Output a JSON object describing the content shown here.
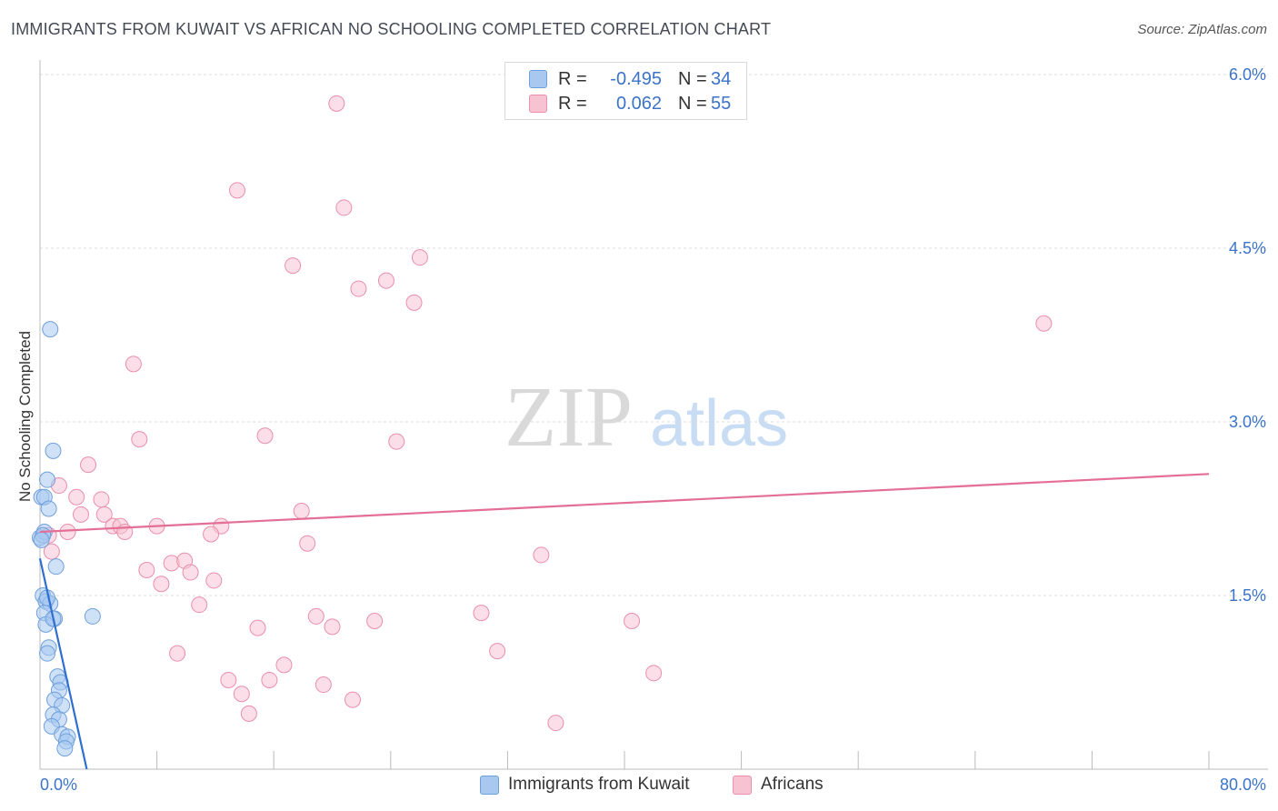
{
  "title": "IMMIGRANTS FROM KUWAIT VS AFRICAN NO SCHOOLING COMPLETED CORRELATION CHART",
  "source": "Source: ZipAtlas.com",
  "watermark": {
    "zip": "ZIP",
    "atlas": "atlas"
  },
  "colors": {
    "blue_fill": "#a8c8f0",
    "blue_stroke": "#6fa0dc",
    "blue_line": "#2e6fcf",
    "pink_fill": "#f7c3d3",
    "pink_stroke": "#ea8fab",
    "pink_line": "#e46f95",
    "accent_text": "#3b73c8",
    "grid": "#dddddd"
  },
  "legend": {
    "rows": [
      {
        "r_label": "R =",
        "r_value": "-0.495",
        "n_label": "N =",
        "n_value": "34"
      },
      {
        "r_label": "R =",
        "r_value": "0.062",
        "n_label": "N =",
        "n_value": "55"
      }
    ]
  },
  "bottom_legend": {
    "series1": "Immigrants from Kuwait",
    "series2": "Africans"
  },
  "chart_data": {
    "type": "scatter",
    "title": "IMMIGRANTS FROM KUWAIT VS AFRICAN NO SCHOOLING COMPLETED CORRELATION CHART",
    "xlabel": "",
    "ylabel": "No Schooling Completed",
    "xlim": [
      0,
      80
    ],
    "ylim": [
      0,
      6.0
    ],
    "x_tick_labels": [
      "0.0%",
      "80.0%"
    ],
    "y_ticks": [
      1.5,
      3.0,
      4.5,
      6.0
    ],
    "y_tick_labels": [
      "1.5%",
      "3.0%",
      "4.5%",
      "6.0%"
    ],
    "grid": true,
    "series": [
      {
        "name": "Immigrants from Kuwait",
        "color": "blue",
        "r": -0.495,
        "n": 34,
        "trend": {
          "x0": 0,
          "y0": 1.82,
          "x1": 3.2,
          "y1": 0.0
        },
        "points": [
          [
            0.7,
            3.8
          ],
          [
            0.9,
            2.75
          ],
          [
            0.5,
            2.5
          ],
          [
            0.1,
            2.35
          ],
          [
            0.3,
            2.35
          ],
          [
            0.6,
            2.25
          ],
          [
            0.0,
            2.0
          ],
          [
            0.3,
            2.05
          ],
          [
            1.1,
            1.75
          ],
          [
            0.2,
            1.5
          ],
          [
            0.4,
            1.45
          ],
          [
            0.7,
            1.43
          ],
          [
            0.3,
            1.35
          ],
          [
            1.0,
            1.3
          ],
          [
            0.4,
            1.25
          ],
          [
            0.9,
            1.3
          ],
          [
            3.6,
            1.32
          ],
          [
            0.6,
            1.05
          ],
          [
            0.5,
            1.0
          ],
          [
            1.2,
            0.8
          ],
          [
            1.4,
            0.75
          ],
          [
            1.3,
            0.68
          ],
          [
            1.0,
            0.6
          ],
          [
            1.5,
            0.55
          ],
          [
            0.9,
            0.47
          ],
          [
            1.3,
            0.43
          ],
          [
            0.8,
            0.37
          ],
          [
            1.5,
            0.3
          ],
          [
            1.9,
            0.28
          ],
          [
            1.8,
            0.24
          ],
          [
            1.7,
            0.18
          ],
          [
            0.2,
            2.02
          ],
          [
            0.1,
            1.98
          ],
          [
            0.5,
            1.48
          ]
        ]
      },
      {
        "name": "Africans",
        "color": "pink",
        "r": 0.062,
        "n": 55,
        "trend": {
          "x0": 0,
          "y0": 2.05,
          "x1": 80,
          "y1": 2.55
        },
        "points": [
          [
            20.3,
            5.75
          ],
          [
            13.5,
            5.0
          ],
          [
            20.8,
            4.85
          ],
          [
            17.3,
            4.35
          ],
          [
            26.0,
            4.42
          ],
          [
            23.7,
            4.22
          ],
          [
            21.8,
            4.15
          ],
          [
            25.6,
            4.03
          ],
          [
            68.7,
            3.85
          ],
          [
            6.4,
            3.5
          ],
          [
            6.8,
            2.85
          ],
          [
            15.4,
            2.88
          ],
          [
            24.4,
            2.83
          ],
          [
            3.3,
            2.63
          ],
          [
            1.3,
            2.45
          ],
          [
            4.2,
            2.33
          ],
          [
            1.9,
            2.05
          ],
          [
            4.4,
            2.2
          ],
          [
            5.0,
            2.1
          ],
          [
            2.8,
            2.2
          ],
          [
            17.9,
            2.23
          ],
          [
            12.4,
            2.1
          ],
          [
            8.0,
            2.1
          ],
          [
            11.7,
            2.03
          ],
          [
            5.5,
            2.1
          ],
          [
            2.5,
            2.35
          ],
          [
            5.8,
            2.05
          ],
          [
            18.3,
            1.95
          ],
          [
            34.3,
            1.85
          ],
          [
            9.0,
            1.78
          ],
          [
            9.9,
            1.8
          ],
          [
            7.3,
            1.72
          ],
          [
            10.3,
            1.7
          ],
          [
            8.3,
            1.6
          ],
          [
            11.9,
            1.63
          ],
          [
            10.9,
            1.42
          ],
          [
            30.2,
            1.35
          ],
          [
            18.9,
            1.32
          ],
          [
            22.9,
            1.28
          ],
          [
            40.5,
            1.28
          ],
          [
            14.9,
            1.22
          ],
          [
            20.0,
            1.23
          ],
          [
            31.3,
            1.02
          ],
          [
            9.4,
            1.0
          ],
          [
            16.7,
            0.9
          ],
          [
            42.0,
            0.83
          ],
          [
            12.9,
            0.77
          ],
          [
            15.7,
            0.77
          ],
          [
            19.4,
            0.73
          ],
          [
            13.8,
            0.65
          ],
          [
            21.4,
            0.6
          ],
          [
            14.3,
            0.48
          ],
          [
            35.3,
            0.4
          ],
          [
            0.8,
            1.88
          ],
          [
            0.6,
            2.02
          ]
        ]
      }
    ]
  }
}
